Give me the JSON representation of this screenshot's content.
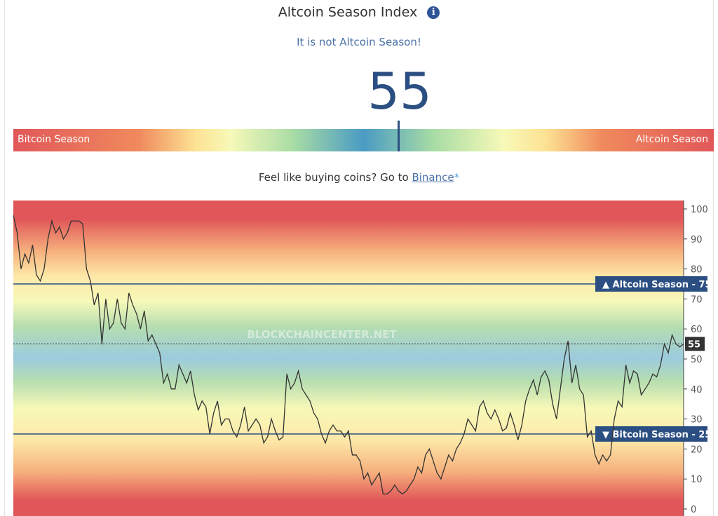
{
  "header": {
    "title": "Altcoin Season Index",
    "info_icon": "info-icon"
  },
  "status_text": "It is not Altcoin Season!",
  "index_value": "55",
  "gauge": {
    "left_label": "Bitcoin Season",
    "right_label": "Altcoin Season",
    "value": 55
  },
  "promo": {
    "prefix": "Feel like buying coins? Go to ",
    "link": "Binance",
    "suffix": "*"
  },
  "watermark": "BLOCKCHAINCENTER.NET",
  "chart_data": {
    "type": "line",
    "ylim": [
      0,
      100
    ],
    "yticks": [
      "0",
      "10",
      "20",
      "30",
      "40",
      "50",
      "60",
      "70",
      "80",
      "90",
      "100"
    ],
    "reference_lines": [
      {
        "label": "▲ Altcoin Season",
        "value": "75"
      },
      {
        "label": "▼ Bitcoin Season",
        "value": "25"
      }
    ],
    "current_value_label": "55",
    "current_value": 55,
    "series": [
      {
        "values": [
          98,
          92,
          80,
          85,
          82,
          88,
          78,
          76,
          80,
          90,
          96,
          92,
          94,
          90,
          92,
          96,
          96,
          96,
          95,
          80,
          76,
          68,
          72,
          55,
          70,
          60,
          62,
          70,
          62,
          60,
          72,
          68,
          65,
          60,
          66,
          56,
          58,
          55,
          52,
          42,
          45,
          40,
          40,
          48,
          45,
          42,
          46,
          38,
          33,
          36,
          34,
          25,
          32,
          36,
          28,
          30,
          30,
          26,
          24,
          28,
          34,
          26,
          28,
          30,
          28,
          22,
          24,
          30,
          26,
          23,
          24,
          45,
          40,
          42,
          46,
          40,
          38,
          36,
          32,
          30,
          25,
          22,
          26,
          28,
          26,
          26,
          24,
          26,
          18,
          18,
          16,
          10,
          12,
          8,
          10,
          12,
          5,
          5,
          6,
          8,
          6,
          5,
          6,
          8,
          10,
          14,
          12,
          18,
          20,
          16,
          12,
          10,
          14,
          18,
          16,
          20,
          22,
          25,
          30,
          28,
          26,
          34,
          36,
          32,
          30,
          33,
          30,
          26,
          27,
          32,
          28,
          23,
          28,
          36,
          40,
          43,
          38,
          44,
          46,
          43,
          35,
          30,
          40,
          50,
          56,
          42,
          48,
          40,
          38,
          24,
          26,
          18,
          15,
          18,
          16,
          18,
          30,
          36,
          34,
          48,
          42,
          46,
          45,
          38,
          40,
          42,
          45,
          44,
          48,
          55,
          52,
          58,
          55,
          54,
          55
        ]
      }
    ]
  }
}
